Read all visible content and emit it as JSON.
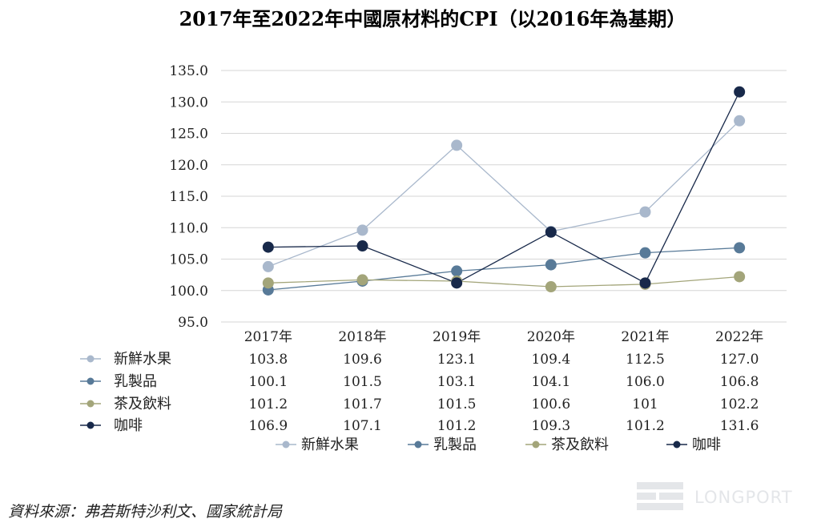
{
  "chart_data": {
    "type": "line",
    "title": "2017年至2022年中國原材料的CPI（以2016年為基期）",
    "categories": [
      "2017年",
      "2018年",
      "2019年",
      "2020年",
      "2021年",
      "2022年"
    ],
    "ylim": [
      95,
      135
    ],
    "yticks": [
      "95.0",
      "100.0",
      "105.0",
      "110.0",
      "115.0",
      "120.0",
      "125.0",
      "130.0",
      "135.0"
    ],
    "ytick_values": [
      95,
      100,
      105,
      110,
      115,
      120,
      125,
      130,
      135
    ],
    "grid": true,
    "legend_position": "bottom",
    "series": [
      {
        "name": "新鮮水果",
        "values": [
          103.8,
          109.6,
          123.1,
          109.4,
          112.5,
          127.0
        ],
        "labels": [
          "103.8",
          "109.6",
          "123.1",
          "109.4",
          "112.5",
          "127.0"
        ],
        "color": "#a9b8cc"
      },
      {
        "name": "乳製品",
        "values": [
          100.1,
          101.5,
          103.1,
          104.1,
          106.0,
          106.8
        ],
        "labels": [
          "100.1",
          "101.5",
          "103.1",
          "104.1",
          "106.0",
          "106.8"
        ],
        "color": "#587a98"
      },
      {
        "name": "茶及飲料",
        "values": [
          101.2,
          101.7,
          101.5,
          100.6,
          101,
          102.2
        ],
        "labels": [
          "101.2",
          "101.7",
          "101.5",
          "100.6",
          "101",
          "102.2"
        ],
        "color": "#a3a57a"
      },
      {
        "name": "咖啡",
        "values": [
          106.9,
          107.1,
          101.2,
          109.3,
          101.2,
          131.6
        ],
        "labels": [
          "106.9",
          "107.1",
          "101.2",
          "109.3",
          "101.2",
          "131.6"
        ],
        "color": "#18294a"
      }
    ]
  },
  "source_note": "資料來源：弗若斯特沙利文、國家統計局",
  "watermark": "LONGPORT"
}
